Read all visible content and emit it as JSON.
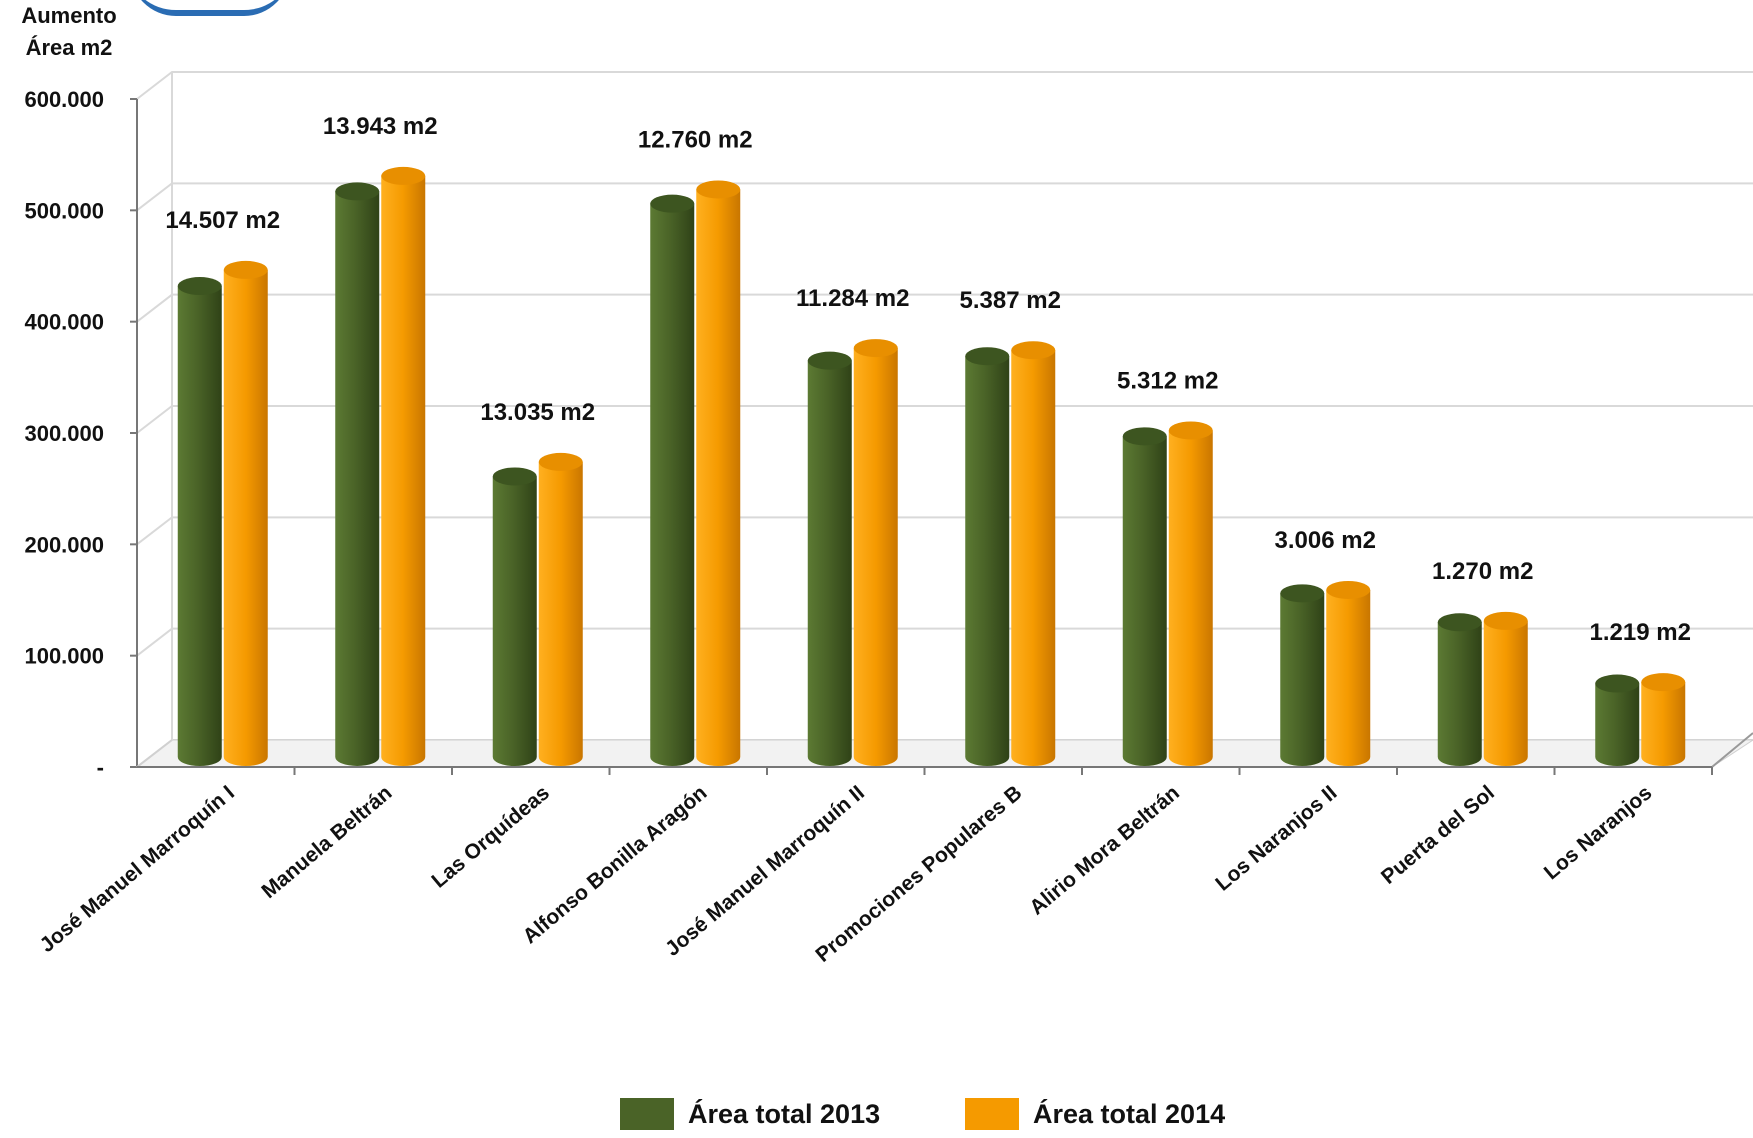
{
  "chart_data": {
    "type": "bar",
    "ylabel": "Aumento\nÁrea m2",
    "ylim": [
      0,
      600000
    ],
    "yticks": [
      {
        "value": 0,
        "label": "-"
      },
      {
        "value": 100000,
        "label": "100.000"
      },
      {
        "value": 200000,
        "label": "200.000"
      },
      {
        "value": 300000,
        "label": "300.000"
      },
      {
        "value": 400000,
        "label": "400.000"
      },
      {
        "value": 500000,
        "label": "500.000"
      },
      {
        "value": 600000,
        "label": "600.000"
      }
    ],
    "grid": true,
    "legend_position": "bottom",
    "categories": [
      "José Manuel Marroquín I",
      "Manuela Beltrán",
      "Las Orquídeas",
      "Alfonso Bonilla Aragón",
      "José Manuel Marroquín II",
      "Promociones Populares B",
      "Alirio Mora Beltrán",
      "Los Naranjos II",
      "Puerta del Sol",
      "Los Naranjos"
    ],
    "series": [
      {
        "name": "Área total 2013",
        "color": "#4a6327",
        "values": [
          423000,
          508000,
          252000,
          497000,
          356000,
          360000,
          288000,
          147000,
          121000,
          66000
        ]
      },
      {
        "name": "Área total 2014",
        "color": "#f59a00",
        "values": [
          437507,
          521943,
          265035,
          509760,
          367284,
          365387,
          293312,
          150006,
          122270,
          67219
        ]
      }
    ],
    "annotations": [
      "14.507 m2",
      "13.943 m2",
      "13.035 m2",
      "12.760  m2",
      "11.284 m2",
      "5.387 m2",
      "5.312 m2",
      "3.006 m2",
      "1.270 m2",
      "1.219 m2"
    ]
  }
}
